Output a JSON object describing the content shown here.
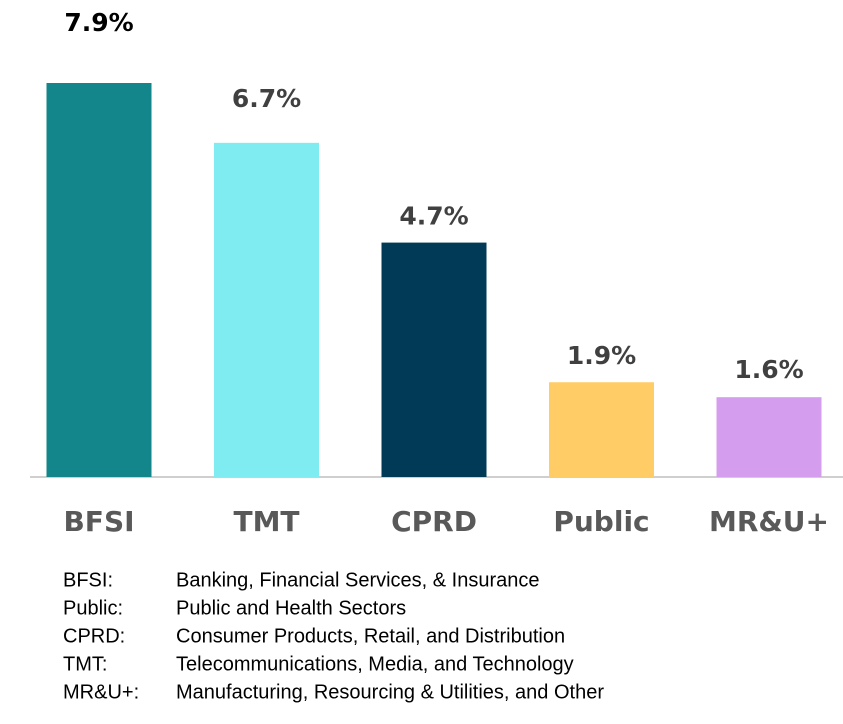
{
  "chart_data": {
    "type": "bar",
    "categories": [
      "BFSI",
      "TMT",
      "CPRD",
      "Public",
      "MR&U+"
    ],
    "values": [
      7.9,
      6.7,
      4.7,
      1.9,
      1.6
    ],
    "value_labels": [
      "7.9%",
      "6.7%",
      "4.7%",
      "1.9%",
      "1.6%"
    ],
    "colors": [
      "#12868a",
      "#7eecf0",
      "#003a57",
      "#ffcc66",
      "#d49ded"
    ]
  },
  "notes": [
    {
      "abbr": "BFSI:",
      "text": "Banking, Financial Services, & Insurance"
    },
    {
      "abbr": "Public:",
      "text": "Public and Health Sectors"
    },
    {
      "abbr": "CPRD:",
      "text": "Consumer Products, Retail, and Distribution"
    },
    {
      "abbr": "TMT:",
      "text": "Telecommunications, Media, and Technology"
    },
    {
      "abbr": "MR&U+:",
      "text": "Manufacturing, Resourcing & Utilities, and Other"
    }
  ]
}
